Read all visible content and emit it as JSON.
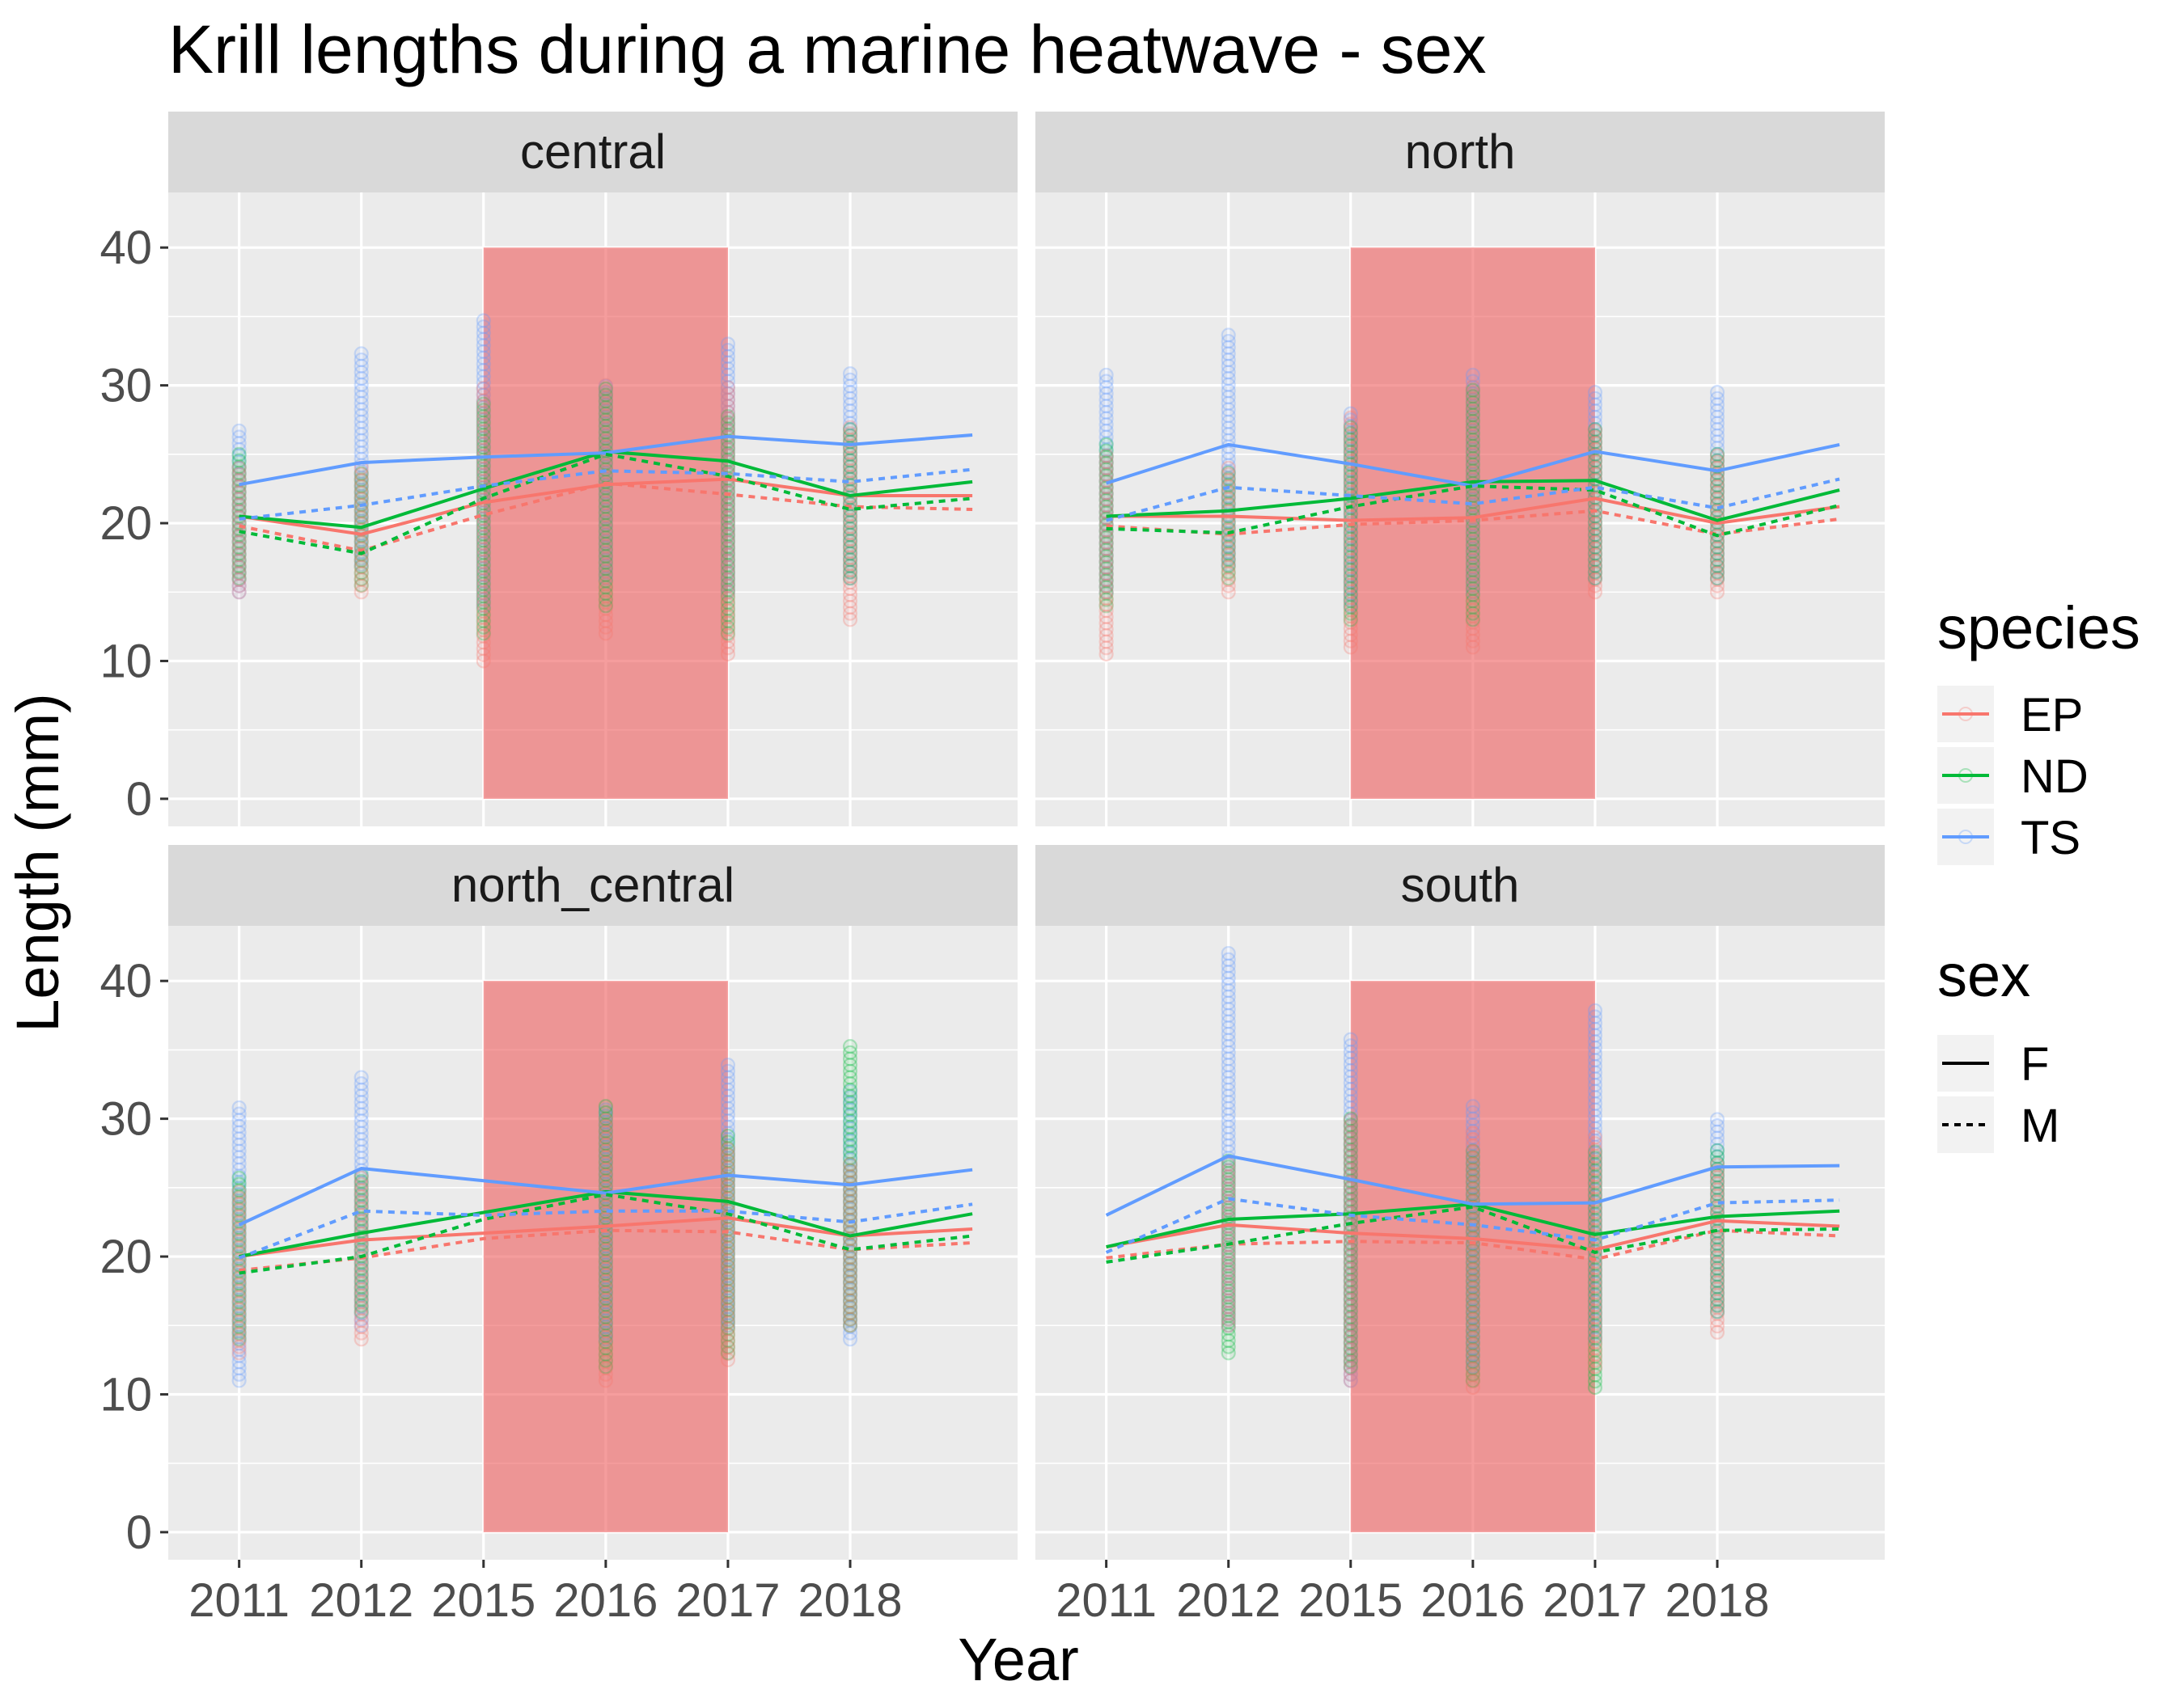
{
  "chart_data": {
    "type": "line",
    "title": "Krill lengths during a marine heatwave - sex",
    "xlabel": "Year",
    "ylabel": "Length (mm)",
    "x": [
      "2011",
      "2012",
      "2015",
      "2016",
      "2017",
      "2018"
    ],
    "ylim": [
      -2,
      44
    ],
    "yticks": [
      0,
      10,
      20,
      30,
      40
    ],
    "grid": true,
    "heatwave_years": [
      "2015",
      "2017"
    ],
    "colors": {
      "EP": "#F8766D",
      "ND": "#00BA38",
      "TS": "#619CFF",
      "heatwave": "#EE5C5C"
    },
    "legend": {
      "placement": "right",
      "species_title": "species",
      "species": [
        "EP",
        "ND",
        "TS"
      ],
      "sex_title": "sex",
      "sex": [
        "F",
        "M"
      ]
    },
    "facets": [
      {
        "name": "central",
        "points": [
          {
            "species": "TS",
            "year": "2011",
            "range": [
              15,
              27
            ]
          },
          {
            "species": "ND",
            "year": "2011",
            "range": [
              16,
              25
            ]
          },
          {
            "species": "EP",
            "year": "2011",
            "range": [
              15,
              24
            ]
          },
          {
            "species": "TS",
            "year": "2012",
            "range": [
              17,
              32.5
            ]
          },
          {
            "species": "ND",
            "year": "2012",
            "range": [
              15.5,
              24
            ]
          },
          {
            "species": "EP",
            "year": "2012",
            "range": [
              15,
              24
            ]
          },
          {
            "species": "TS",
            "year": "2015",
            "range": [
              14,
              35
            ]
          },
          {
            "species": "ND",
            "year": "2015",
            "range": [
              12,
              29
            ]
          },
          {
            "species": "EP",
            "year": "2015",
            "range": [
              10,
              30
            ]
          },
          {
            "species": "TS",
            "year": "2016",
            "range": [
              16,
              30
            ]
          },
          {
            "species": "ND",
            "year": "2016",
            "range": [
              14,
              30
            ]
          },
          {
            "species": "EP",
            "year": "2016",
            "range": [
              12,
              30
            ]
          },
          {
            "species": "TS",
            "year": "2017",
            "range": [
              15,
              33
            ]
          },
          {
            "species": "ND",
            "year": "2017",
            "range": [
              12,
              28
            ]
          },
          {
            "species": "EP",
            "year": "2017",
            "range": [
              10.5,
              30
            ]
          },
          {
            "species": "TS",
            "year": "2018",
            "range": [
              16,
              31
            ]
          },
          {
            "species": "ND",
            "year": "2018",
            "range": [
              16,
              27
            ]
          },
          {
            "species": "EP",
            "year": "2018",
            "range": [
              13,
              27
            ]
          }
        ],
        "lines": [
          {
            "species": "EP",
            "sex": "F",
            "values": [
              20.5,
              19.2,
              21.5,
              22.8,
              23.2,
              22.0,
              22.0
            ]
          },
          {
            "species": "ND",
            "sex": "F",
            "values": [
              20.5,
              19.7,
              22.5,
              25.2,
              24.5,
              22.0,
              23.0
            ]
          },
          {
            "species": "TS",
            "sex": "F",
            "values": [
              22.8,
              24.4,
              24.8,
              25.1,
              26.3,
              25.7,
              26.4
            ]
          },
          {
            "species": "EP",
            "sex": "M",
            "values": [
              19.8,
              18.0,
              20.6,
              22.9,
              22.1,
              21.2,
              21.0
            ]
          },
          {
            "species": "ND",
            "sex": "M",
            "values": [
              19.4,
              17.8,
              21.8,
              25.0,
              23.4,
              21.0,
              21.8
            ]
          },
          {
            "species": "TS",
            "sex": "M",
            "values": [
              20.3,
              21.3,
              22.7,
              23.8,
              23.6,
              23.0,
              23.9
            ]
          }
        ]
      },
      {
        "name": "north",
        "points": [
          {
            "species": "TS",
            "year": "2011",
            "range": [
              15,
              31
            ]
          },
          {
            "species": "ND",
            "year": "2011",
            "range": [
              14,
              26
            ]
          },
          {
            "species": "EP",
            "year": "2011",
            "range": [
              10.5,
              25
            ]
          },
          {
            "species": "TS",
            "year": "2012",
            "range": [
              17,
              34
            ]
          },
          {
            "species": "ND",
            "year": "2012",
            "range": [
              16,
              24
            ]
          },
          {
            "species": "EP",
            "year": "2012",
            "range": [
              15,
              24
            ]
          },
          {
            "species": "TS",
            "year": "2015",
            "range": [
              14,
              28
            ]
          },
          {
            "species": "ND",
            "year": "2015",
            "range": [
              13,
              27
            ]
          },
          {
            "species": "EP",
            "year": "2015",
            "range": [
              11,
              28
            ]
          },
          {
            "species": "TS",
            "year": "2016",
            "range": [
              15,
              31
            ]
          },
          {
            "species": "ND",
            "year": "2016",
            "range": [
              13,
              30
            ]
          },
          {
            "species": "EP",
            "year": "2016",
            "range": [
              11,
              30
            ]
          },
          {
            "species": "TS",
            "year": "2017",
            "range": [
              16,
              29.5
            ]
          },
          {
            "species": "ND",
            "year": "2017",
            "range": [
              16,
              27
            ]
          },
          {
            "species": "EP",
            "year": "2017",
            "range": [
              15,
              27
            ]
          },
          {
            "species": "TS",
            "year": "2018",
            "range": [
              16,
              29.5
            ]
          },
          {
            "species": "ND",
            "year": "2018",
            "range": [
              16,
              25
            ]
          },
          {
            "species": "EP",
            "year": "2018",
            "range": [
              15,
              25
            ]
          }
        ],
        "lines": [
          {
            "species": "EP",
            "sex": "F",
            "values": [
              20.5,
              20.5,
              20.2,
              20.4,
              21.8,
              20.0,
              21.2
            ]
          },
          {
            "species": "ND",
            "sex": "F",
            "values": [
              20.5,
              20.9,
              21.8,
              23.0,
              23.1,
              20.2,
              22.4
            ]
          },
          {
            "species": "TS",
            "sex": "F",
            "values": [
              22.9,
              25.7,
              24.3,
              22.7,
              25.2,
              23.8,
              25.7
            ]
          },
          {
            "species": "EP",
            "sex": "M",
            "values": [
              19.8,
              19.2,
              19.9,
              20.2,
              20.9,
              19.2,
              20.3
            ]
          },
          {
            "species": "ND",
            "sex": "M",
            "values": [
              19.6,
              19.3,
              21.2,
              22.7,
              22.4,
              19.1,
              21.3
            ]
          },
          {
            "species": "TS",
            "sex": "M",
            "values": [
              20.2,
              22.6,
              22.0,
              21.4,
              22.6,
              21.1,
              23.2
            ]
          }
        ]
      },
      {
        "name": "north_central",
        "points": [
          {
            "species": "TS",
            "year": "2011",
            "range": [
              11,
              31
            ]
          },
          {
            "species": "ND",
            "year": "2011",
            "range": [
              14,
              26
            ]
          },
          {
            "species": "EP",
            "year": "2011",
            "range": [
              13,
              25
            ]
          },
          {
            "species": "TS",
            "year": "2012",
            "range": [
              15,
              33
            ]
          },
          {
            "species": "ND",
            "year": "2012",
            "range": [
              16,
              26
            ]
          },
          {
            "species": "EP",
            "year": "2012",
            "range": [
              14,
              26
            ]
          },
          {
            "species": "TS",
            "year": "2016",
            "range": [
              14,
              31
            ]
          },
          {
            "species": "ND",
            "year": "2016",
            "range": [
              12,
              31
            ]
          },
          {
            "species": "EP",
            "year": "2016",
            "range": [
              11,
              30
            ]
          },
          {
            "species": "TS",
            "year": "2017",
            "range": [
              15,
              34
            ]
          },
          {
            "species": "ND",
            "year": "2017",
            "range": [
              13,
              29
            ]
          },
          {
            "species": "EP",
            "year": "2017",
            "range": [
              12.5,
              28
            ]
          },
          {
            "species": "TS",
            "year": "2018",
            "range": [
              14,
              32
            ]
          },
          {
            "species": "ND",
            "year": "2018",
            "range": [
              15,
              35.5
            ]
          },
          {
            "species": "EP",
            "year": "2018",
            "range": [
              15,
              27
            ]
          }
        ],
        "lines": [
          {
            "species": "EP",
            "sex": "F",
            "values": [
              20.0,
              21.2,
              21.7,
              22.2,
              22.8,
              21.5,
              22.0
            ]
          },
          {
            "species": "ND",
            "sex": "F",
            "values": [
              20.0,
              21.7,
              23.2,
              24.7,
              24.0,
              21.5,
              23.1
            ]
          },
          {
            "species": "TS",
            "sex": "F",
            "values": [
              22.3,
              26.4,
              25.5,
              24.6,
              25.9,
              25.2,
              26.3
            ]
          },
          {
            "species": "EP",
            "sex": "M",
            "values": [
              19.0,
              19.9,
              21.3,
              21.9,
              21.8,
              20.5,
              21.0
            ]
          },
          {
            "species": "ND",
            "sex": "M",
            "values": [
              18.8,
              20.0,
              22.7,
              24.5,
              23.1,
              20.5,
              21.5
            ]
          },
          {
            "species": "TS",
            "sex": "M",
            "values": [
              19.9,
              23.3,
              23.0,
              23.3,
              23.3,
              22.5,
              23.8
            ]
          }
        ]
      },
      {
        "name": "south",
        "points": [
          {
            "species": "TS",
            "year": "2012",
            "range": [
              15,
              42
            ]
          },
          {
            "species": "ND",
            "year": "2012",
            "range": [
              13,
              27
            ]
          },
          {
            "species": "EP",
            "year": "2012",
            "range": [
              15,
              27
            ]
          },
          {
            "species": "TS",
            "year": "2015",
            "range": [
              11,
              36
            ]
          },
          {
            "species": "ND",
            "year": "2015",
            "range": [
              12,
              30
            ]
          },
          {
            "species": "EP",
            "year": "2015",
            "range": [
              11,
              30
            ]
          },
          {
            "species": "TS",
            "year": "2016",
            "range": [
              12,
              31
            ]
          },
          {
            "species": "ND",
            "year": "2016",
            "range": [
              11,
              28
            ]
          },
          {
            "species": "EP",
            "year": "2016",
            "range": [
              10.5,
              29
            ]
          },
          {
            "species": "TS",
            "year": "2017",
            "range": [
              14,
              38
            ]
          },
          {
            "species": "ND",
            "year": "2017",
            "range": [
              10.5,
              28
            ]
          },
          {
            "species": "EP",
            "year": "2017",
            "range": [
              12,
              29
            ]
          },
          {
            "species": "TS",
            "year": "2018",
            "range": [
              16,
              30
            ]
          },
          {
            "species": "ND",
            "year": "2018",
            "range": [
              16,
              28
            ]
          },
          {
            "species": "EP",
            "year": "2018",
            "range": [
              14.5,
              27
            ]
          }
        ],
        "lines": [
          {
            "species": "EP",
            "sex": "F",
            "values": [
              20.7,
              22.3,
              21.7,
              21.3,
              20.5,
              22.6,
              22.2
            ]
          },
          {
            "species": "ND",
            "sex": "F",
            "values": [
              20.7,
              22.7,
              23.1,
              23.8,
              21.6,
              22.9,
              23.3
            ]
          },
          {
            "species": "TS",
            "sex": "F",
            "values": [
              23.0,
              27.3,
              25.6,
              23.8,
              23.9,
              26.5,
              26.6
            ]
          },
          {
            "species": "EP",
            "sex": "M",
            "values": [
              19.9,
              20.9,
              21.1,
              21.0,
              19.8,
              21.9,
              21.5
            ]
          },
          {
            "species": "ND",
            "sex": "M",
            "values": [
              19.6,
              20.9,
              22.4,
              23.6,
              20.3,
              21.9,
              22.0
            ]
          },
          {
            "species": "TS",
            "sex": "M",
            "values": [
              20.3,
              24.2,
              23.0,
              22.3,
              21.2,
              23.9,
              24.1
            ]
          }
        ]
      }
    ]
  }
}
